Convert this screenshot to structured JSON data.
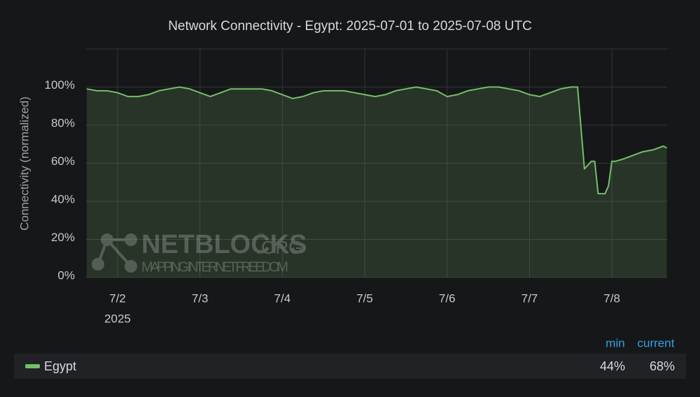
{
  "chart_data": {
    "type": "line",
    "title": "Network Connectivity - Egypt: 2025-07-01 to 2025-07-08 UTC",
    "y_label": "Connectivity (normalized)",
    "x_tick_sublabel": "2025",
    "xlim": [
      "2025-07-01T14:50",
      "2025-07-08T16:05"
    ],
    "xticks": [
      {
        "value": "2025-07-02T00:00",
        "label": "7/2"
      },
      {
        "value": "2025-07-03T00:00",
        "label": "7/3"
      },
      {
        "value": "2025-07-04T00:00",
        "label": "7/4"
      },
      {
        "value": "2025-07-05T00:00",
        "label": "7/5"
      },
      {
        "value": "2025-07-06T00:00",
        "label": "7/6"
      },
      {
        "value": "2025-07-07T00:00",
        "label": "7/7"
      },
      {
        "value": "2025-07-08T00:00",
        "label": "7/8"
      }
    ],
    "ylim": [
      0,
      120
    ],
    "yticks": [
      {
        "value": 0,
        "label": "0%"
      },
      {
        "value": 20,
        "label": "20%"
      },
      {
        "value": 40,
        "label": "40%"
      },
      {
        "value": 60,
        "label": "60%"
      },
      {
        "value": 80,
        "label": "80%"
      },
      {
        "value": 100,
        "label": "100%"
      }
    ],
    "grid": true,
    "x": [
      "2025-07-01T15:00",
      "2025-07-01T18:00",
      "2025-07-01T21:00",
      "2025-07-02T00:00",
      "2025-07-02T03:00",
      "2025-07-02T06:00",
      "2025-07-02T09:00",
      "2025-07-02T12:00",
      "2025-07-02T15:00",
      "2025-07-02T18:00",
      "2025-07-02T21:00",
      "2025-07-03T00:00",
      "2025-07-03T03:00",
      "2025-07-03T06:00",
      "2025-07-03T09:00",
      "2025-07-03T12:00",
      "2025-07-03T15:00",
      "2025-07-03T18:00",
      "2025-07-03T21:00",
      "2025-07-04T00:00",
      "2025-07-04T03:00",
      "2025-07-04T06:00",
      "2025-07-04T09:00",
      "2025-07-04T12:00",
      "2025-07-04T15:00",
      "2025-07-04T18:00",
      "2025-07-04T21:00",
      "2025-07-05T00:00",
      "2025-07-05T03:00",
      "2025-07-05T06:00",
      "2025-07-05T09:00",
      "2025-07-05T12:00",
      "2025-07-05T15:00",
      "2025-07-05T18:00",
      "2025-07-05T21:00",
      "2025-07-06T00:00",
      "2025-07-06T03:00",
      "2025-07-06T06:00",
      "2025-07-06T09:00",
      "2025-07-06T12:00",
      "2025-07-06T15:00",
      "2025-07-06T18:00",
      "2025-07-06T21:00",
      "2025-07-07T00:00",
      "2025-07-07T03:00",
      "2025-07-07T06:00",
      "2025-07-07T09:00",
      "2025-07-07T12:00",
      "2025-07-07T14:00",
      "2025-07-07T16:00",
      "2025-07-07T18:00",
      "2025-07-07T19:00",
      "2025-07-07T20:00",
      "2025-07-07T22:00",
      "2025-07-07T23:00",
      "2025-07-08T00:00",
      "2025-07-08T01:00",
      "2025-07-08T03:00",
      "2025-07-08T06:00",
      "2025-07-08T09:00",
      "2025-07-08T12:00",
      "2025-07-08T15:00",
      "2025-07-08T16:00"
    ],
    "series": [
      {
        "name": "Egypt",
        "color": "#73bf69",
        "values": [
          99,
          98,
          98,
          97,
          95,
          95,
          96,
          98,
          99,
          100,
          99,
          97,
          95,
          97,
          99,
          99,
          99,
          99,
          98,
          96,
          94,
          95,
          97,
          98,
          98,
          98,
          97,
          96,
          95,
          96,
          98,
          99,
          100,
          99,
          98,
          95,
          96,
          98,
          99,
          100,
          100,
          99,
          98,
          96,
          95,
          97,
          99,
          100,
          100,
          57,
          61,
          61,
          44,
          44,
          48,
          61,
          61,
          62,
          64,
          66,
          67,
          69,
          68
        ]
      }
    ],
    "legend": {
      "columns": [
        "min",
        "current"
      ],
      "values": [
        44,
        68
      ],
      "value_labels": [
        "44%",
        "68%"
      ]
    },
    "watermark": {
      "name": "NETBLOCKS",
      "tm": "™",
      "suffix": ".ORG",
      "tagline": "MAPPING INTERNET FREEDOM"
    }
  }
}
